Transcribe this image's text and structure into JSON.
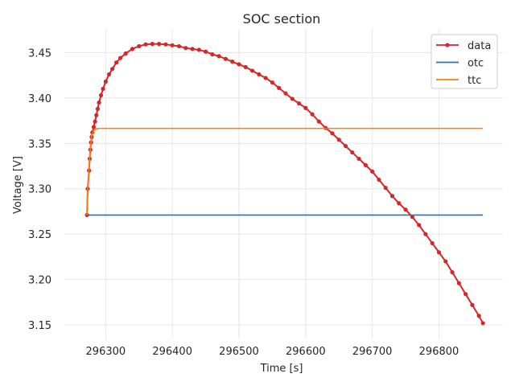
{
  "chart_data": {
    "type": "line",
    "title": "SOC section",
    "xlabel": "Time [s]",
    "ylabel": "Voltage [V]",
    "xlim": [
      296238,
      296896
    ],
    "ylim": [
      3.135,
      3.476
    ],
    "xticks": [
      296300,
      296400,
      296500,
      296600,
      296700,
      296800
    ],
    "yticks": [
      3.15,
      3.2,
      3.25,
      3.3,
      3.35,
      3.4,
      3.45
    ],
    "xtick_labels": [
      "296300",
      "296400",
      "296500",
      "296600",
      "296700",
      "296800"
    ],
    "ytick_labels": [
      "3.15",
      "3.20",
      "3.25",
      "3.30",
      "3.35",
      "3.40",
      "3.45"
    ],
    "grid": true,
    "legend_position": "top-right",
    "series": [
      {
        "name": "data",
        "color": "#d62728",
        "marker": "circle",
        "points": [
          [
            296272,
            3.271
          ],
          [
            296273,
            3.3
          ],
          [
            296275,
            3.32
          ],
          [
            296276,
            3.333
          ],
          [
            296277,
            3.343
          ],
          [
            296278,
            3.351
          ],
          [
            296279,
            3.357
          ],
          [
            296280,
            3.362
          ],
          [
            296282,
            3.368
          ],
          [
            296284,
            3.374
          ],
          [
            296286,
            3.381
          ],
          [
            296288,
            3.388
          ],
          [
            296290,
            3.395
          ],
          [
            296293,
            3.403
          ],
          [
            296296,
            3.41
          ],
          [
            296300,
            3.418
          ],
          [
            296305,
            3.426
          ],
          [
            296310,
            3.432
          ],
          [
            296316,
            3.439
          ],
          [
            296322,
            3.444
          ],
          [
            296330,
            3.449
          ],
          [
            296340,
            3.454
          ],
          [
            296350,
            3.457
          ],
          [
            296360,
            3.459
          ],
          [
            296370,
            3.4595
          ],
          [
            296380,
            3.4595
          ],
          [
            296390,
            3.459
          ],
          [
            296400,
            3.458
          ],
          [
            296410,
            3.457
          ],
          [
            296420,
            3.455
          ],
          [
            296430,
            3.454
          ],
          [
            296440,
            3.453
          ],
          [
            296450,
            3.451
          ],
          [
            296460,
            3.448
          ],
          [
            296470,
            3.446
          ],
          [
            296480,
            3.443
          ],
          [
            296490,
            3.44
          ],
          [
            296500,
            3.437
          ],
          [
            296510,
            3.434
          ],
          [
            296520,
            3.43
          ],
          [
            296530,
            3.426
          ],
          [
            296540,
            3.422
          ],
          [
            296550,
            3.417
          ],
          [
            296560,
            3.411
          ],
          [
            296570,
            3.405
          ],
          [
            296580,
            3.399
          ],
          [
            296590,
            3.394
          ],
          [
            296600,
            3.389
          ],
          [
            296610,
            3.382
          ],
          [
            296620,
            3.374
          ],
          [
            296630,
            3.367
          ],
          [
            296640,
            3.361
          ],
          [
            296650,
            3.354
          ],
          [
            296660,
            3.347
          ],
          [
            296670,
            3.34
          ],
          [
            296680,
            3.333
          ],
          [
            296690,
            3.326
          ],
          [
            296700,
            3.319
          ],
          [
            296710,
            3.31
          ],
          [
            296720,
            3.301
          ],
          [
            296730,
            3.292
          ],
          [
            296740,
            3.284
          ],
          [
            296750,
            3.277
          ],
          [
            296760,
            3.269
          ],
          [
            296770,
            3.26
          ],
          [
            296780,
            3.25
          ],
          [
            296790,
            3.24
          ],
          [
            296800,
            3.23
          ],
          [
            296810,
            3.22
          ],
          [
            296820,
            3.208
          ],
          [
            296830,
            3.196
          ],
          [
            296840,
            3.184
          ],
          [
            296850,
            3.172
          ],
          [
            296860,
            3.16
          ],
          [
            296866,
            3.152
          ]
        ]
      },
      {
        "name": "otc",
        "color": "#1f77b4",
        "marker": "none",
        "points": [
          [
            296272,
            3.271
          ],
          [
            296866,
            3.271
          ]
        ]
      },
      {
        "name": "ttc",
        "color": "#ff7f0e",
        "marker": "none",
        "points": [
          [
            296272,
            3.271
          ],
          [
            296273,
            3.3
          ],
          [
            296275,
            3.322
          ],
          [
            296277,
            3.345
          ],
          [
            296279,
            3.358
          ],
          [
            296282,
            3.364
          ],
          [
            296286,
            3.366
          ],
          [
            296290,
            3.3665
          ],
          [
            296866,
            3.3665
          ]
        ]
      }
    ]
  }
}
